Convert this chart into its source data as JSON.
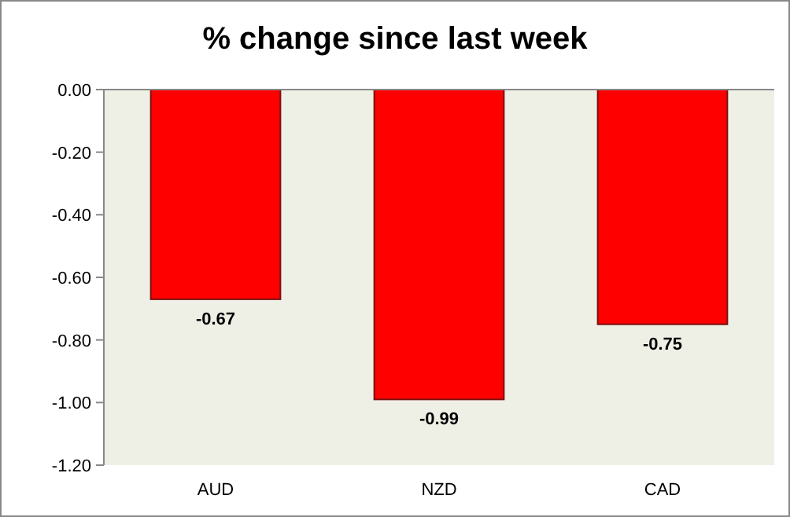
{
  "chart_data": {
    "type": "bar",
    "title": "% change since last week",
    "categories": [
      "AUD",
      "NZD",
      "CAD"
    ],
    "values": [
      -0.67,
      -0.99,
      -0.75
    ],
    "color": "#ff0000",
    "ylim": [
      -1.2,
      0
    ],
    "yticks": [
      {
        "value": 0,
        "label": "0.00"
      },
      {
        "value": -0.2,
        "label": "-0.20"
      },
      {
        "value": -0.4,
        "label": "-0.40"
      },
      {
        "value": -0.6,
        "label": "-0.60"
      },
      {
        "value": -0.8,
        "label": "-0.80"
      },
      {
        "value": -1,
        "label": "-1.00"
      },
      {
        "value": -1.2,
        "label": "-1.20"
      }
    ],
    "data_labels": true,
    "grid": false
  }
}
